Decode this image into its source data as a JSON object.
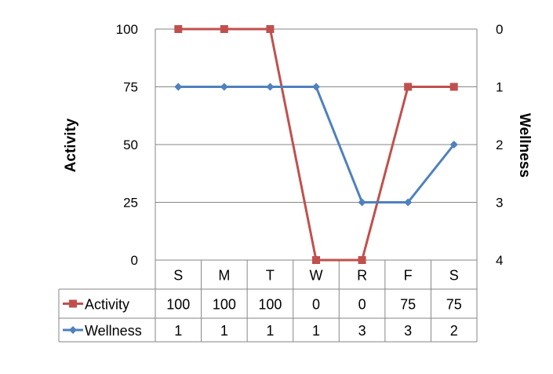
{
  "chart_data": {
    "type": "line",
    "categories": [
      "S",
      "M",
      "T",
      "W",
      "R",
      "F",
      "S"
    ],
    "series": [
      {
        "name": "Activity",
        "values": [
          100,
          100,
          100,
          0,
          0,
          75,
          75
        ],
        "table_values": [
          "100",
          "100",
          "100",
          "0",
          "0",
          "75",
          "75"
        ],
        "axis": "left",
        "color": "#C0504D",
        "marker": "square"
      },
      {
        "name": "Wellness",
        "values": [
          1,
          1,
          1,
          1,
          3,
          3,
          2
        ],
        "table_values": [
          "1",
          "1",
          "1",
          "1",
          "3",
          "3",
          "2"
        ],
        "axis": "right",
        "color": "#4F81BD",
        "marker": "diamond"
      }
    ],
    "ylabel": "Activity",
    "y2label": "Wellness",
    "ylim": [
      0,
      100
    ],
    "y2lim": [
      4,
      0
    ],
    "y2_reversed": true,
    "yticks": [
      "0",
      "25",
      "50",
      "75",
      "100"
    ],
    "y2ticks": [
      "4",
      "3",
      "2",
      "1",
      "0"
    ],
    "grid": true,
    "data_table": true
  }
}
